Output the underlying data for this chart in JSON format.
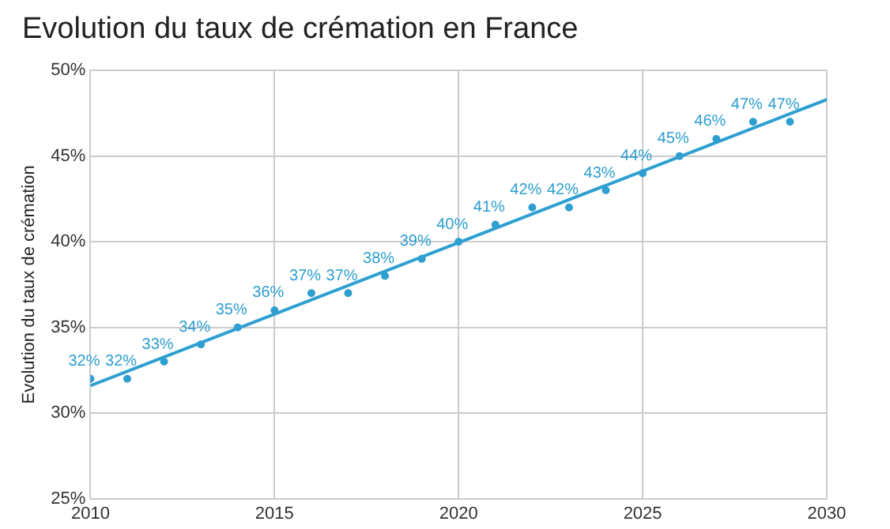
{
  "chart_data": {
    "type": "scatter",
    "title": "Evolution du taux de crémation en France",
    "ylabel": "Evolution du taux de crémation",
    "x": [
      2010,
      2011,
      2012,
      2013,
      2014,
      2015,
      2016,
      2017,
      2018,
      2019,
      2020,
      2021,
      2022,
      2023,
      2024,
      2025,
      2026,
      2027,
      2028,
      2029
    ],
    "series": [
      {
        "type": "scatter",
        "color": "#2e9fd0",
        "marker": "circle",
        "values": [
          32,
          32,
          33,
          34,
          35,
          36,
          37,
          37,
          38,
          39,
          40,
          41,
          42,
          42,
          43,
          44,
          45,
          46,
          47,
          47
        ],
        "value_labels": [
          "32%",
          "32%",
          "33%",
          "34%",
          "35%",
          "36%",
          "37%",
          "37%",
          "38%",
          "39%",
          "40%",
          "41%",
          "42%",
          "42%",
          "43%",
          "44%",
          "45%",
          "46%",
          "47%",
          "47%"
        ]
      },
      {
        "type": "line",
        "color": "#2e9fd0",
        "x": [
          2010,
          2030
        ],
        "values": [
          31.6,
          48.3
        ]
      }
    ],
    "xlim": [
      2010,
      2030
    ],
    "xticks": [
      2010,
      2015,
      2020,
      2025,
      2030
    ],
    "ylim": [
      25,
      50
    ],
    "yticks": [
      {
        "value": 25,
        "label": "25%"
      },
      {
        "value": 30,
        "label": "30%"
      },
      {
        "value": 35,
        "label": "35%"
      },
      {
        "value": 40,
        "label": "40%"
      },
      {
        "value": 45,
        "label": "45%"
      },
      {
        "value": 50,
        "label": "50%"
      }
    ],
    "grid": true,
    "legend": false
  }
}
